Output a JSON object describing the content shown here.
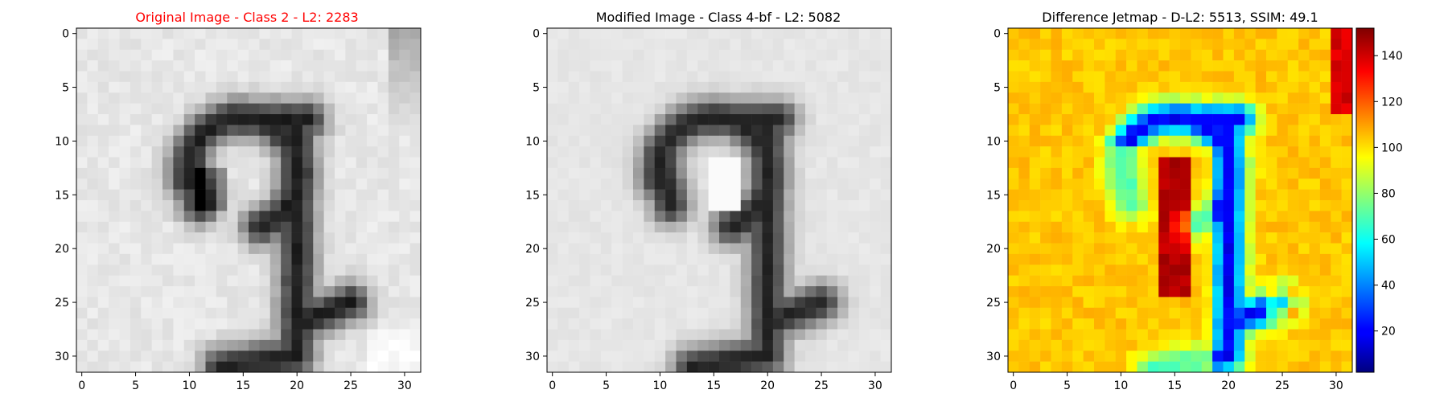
{
  "chart_data": [
    {
      "type": "heatmap",
      "title": "Original Image - Class 2 - L2: 2283",
      "title_color": "#ff0000",
      "colormap": "gray",
      "xlim": [
        -0.5,
        31.5
      ],
      "ylim": [
        31.5,
        -0.5
      ],
      "xticks": [
        0,
        5,
        10,
        15,
        20,
        25,
        30
      ],
      "yticks": [
        0,
        5,
        10,
        15,
        20,
        25,
        30
      ],
      "grid": false
    },
    {
      "type": "heatmap",
      "title": "Modified Image - Class 4-bf - L2: 5082",
      "title_color": "#000000",
      "colormap": "gray",
      "xlim": [
        -0.5,
        31.5
      ],
      "ylim": [
        31.5,
        -0.5
      ],
      "xticks": [
        0,
        5,
        10,
        15,
        20,
        25,
        30
      ],
      "yticks": [
        0,
        5,
        10,
        15,
        20,
        25,
        30
      ],
      "grid": false
    },
    {
      "type": "heatmap",
      "title": "Difference Jetmap - D-L2: 5513, SSIM: 49.1",
      "title_color": "#000000",
      "colormap": "jet",
      "xlim": [
        -0.5,
        31.5
      ],
      "ylim": [
        31.5,
        -0.5
      ],
      "xticks": [
        0,
        5,
        10,
        15,
        20,
        25,
        30
      ],
      "yticks": [
        0,
        5,
        10,
        15,
        20,
        25,
        30
      ],
      "colorbar": {
        "range": [
          2,
          152
        ],
        "ticks": [
          20,
          40,
          60,
          80,
          100,
          120,
          140
        ]
      },
      "grid": false
    }
  ]
}
